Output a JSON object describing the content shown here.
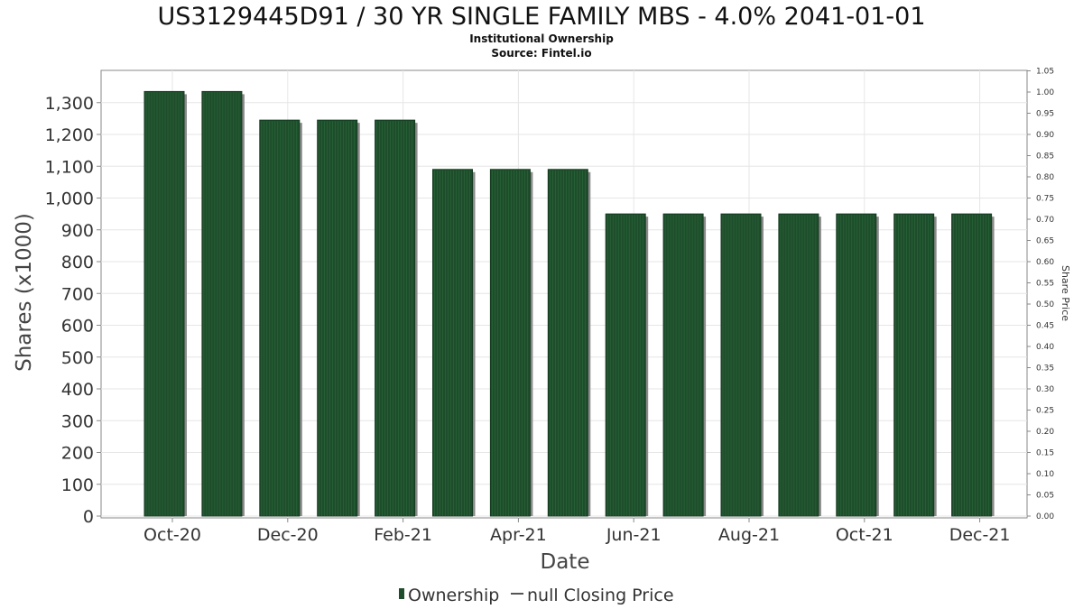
{
  "chart_data": {
    "type": "bar",
    "title": "US3129445D91 / 30 YR SINGLE FAMILY MBS - 4.0% 2041-01-01",
    "subtitle": "Institutional Ownership",
    "source": "Source: Fintel.io",
    "xlabel": "Date",
    "ylabel": "Shares (x1000)",
    "y2label": "Share Price",
    "ylim": [
      0,
      1400
    ],
    "y_ticks": [
      "0",
      "100",
      "200",
      "300",
      "400",
      "500",
      "600",
      "700",
      "800",
      "900",
      "1,000",
      "1,100",
      "1,200",
      "1,300"
    ],
    "y2lim": [
      0,
      1.05
    ],
    "y2_ticks": [
      "0.00",
      "0.05",
      "0.10",
      "0.15",
      "0.20",
      "0.25",
      "0.30",
      "0.35",
      "0.40",
      "0.45",
      "0.50",
      "0.55",
      "0.60",
      "0.65",
      "0.70",
      "0.75",
      "0.80",
      "0.85",
      "0.90",
      "0.95",
      "1.00",
      "1.05"
    ],
    "x_ticks": [
      "Oct-20",
      "Dec-20",
      "Feb-21",
      "Apr-21",
      "Jun-21",
      "Aug-21",
      "Oct-21",
      "Dec-21"
    ],
    "grid": true,
    "legend_position": "bottom-center",
    "series": [
      {
        "name": "Ownership",
        "color": "#1e4d2b",
        "values": [
          1335,
          1335,
          1245,
          1245,
          1245,
          1090,
          1090,
          1090,
          950,
          950,
          950,
          950,
          950,
          950,
          950
        ]
      }
    ],
    "legend": [
      {
        "label": "Ownership",
        "color": "#1e4d2b",
        "marker": "bar"
      },
      {
        "label": "null Closing Price",
        "color": "#555555",
        "marker": "line"
      }
    ]
  }
}
